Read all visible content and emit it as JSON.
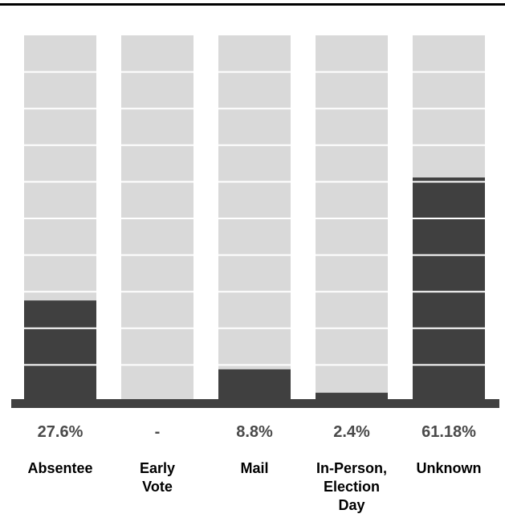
{
  "chart_data": {
    "type": "bar",
    "categories": [
      "Absentee",
      "Early Vote",
      "Mail",
      "In-Person, Election Day",
      "Unknown"
    ],
    "category_lines": [
      [
        "Absentee"
      ],
      [
        "Early",
        "Vote"
      ],
      [
        "Mail"
      ],
      [
        "In-Person,",
        "Election",
        "Day"
      ],
      [
        "Unknown"
      ]
    ],
    "values": [
      27.6,
      0,
      8.8,
      2.4,
      61.18
    ],
    "value_labels": [
      "27.6%",
      "-",
      "8.8%",
      "2.4%",
      "61.18%"
    ],
    "ylim": [
      0,
      100
    ],
    "grid_step": 10,
    "colors": {
      "track": "#d9d9d9",
      "fill": "#404040",
      "baseline": "#404040",
      "grid": "#ffffff",
      "label": "#4a4a4a",
      "category": "#000000"
    }
  }
}
